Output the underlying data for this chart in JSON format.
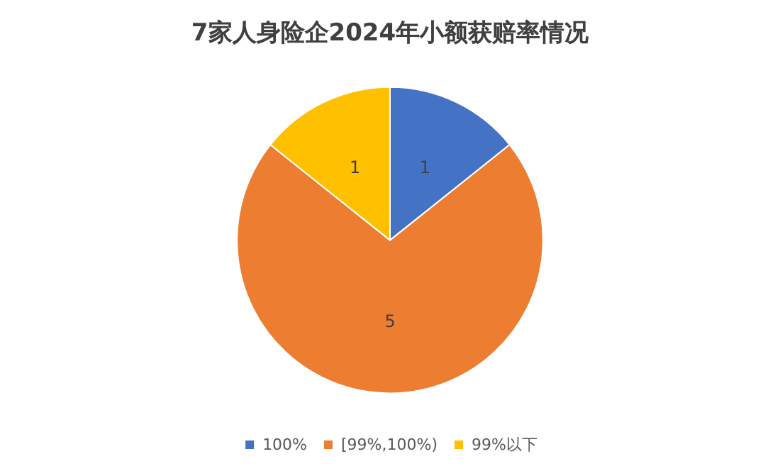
{
  "chart_data": {
    "type": "pie",
    "title": "7家人身险企2024年小额获赔率情况",
    "categories": [
      "100%",
      "[99%,100%)",
      "99%以下"
    ],
    "values": [
      1,
      5,
      1
    ],
    "colors": [
      "#4472c4",
      "#ed7d31",
      "#ffc000"
    ],
    "data_labels": true,
    "legend": "bottom"
  }
}
